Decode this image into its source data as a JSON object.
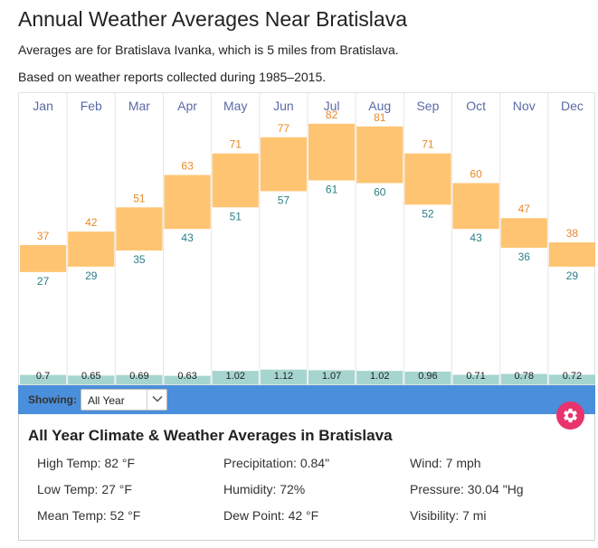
{
  "page": {
    "title": "Annual Weather Averages Near Bratislava",
    "subtitle1": "Averages are for Bratislava Ivanka, which is 5 miles from Bratislava.",
    "subtitle2": "Based on weather reports collected during 1985–2015."
  },
  "chart_data": {
    "type": "floating-bar",
    "categories": [
      "Jan",
      "Feb",
      "Mar",
      "Apr",
      "May",
      "Jun",
      "Jul",
      "Aug",
      "Sep",
      "Oct",
      "Nov",
      "Dec"
    ],
    "series": [
      {
        "name": "High Temp (°F)",
        "values": [
          37,
          42,
          51,
          63,
          71,
          77,
          82,
          81,
          71,
          60,
          47,
          38
        ]
      },
      {
        "name": "Low Temp (°F)",
        "values": [
          27,
          29,
          35,
          43,
          51,
          57,
          61,
          60,
          52,
          43,
          36,
          29
        ]
      },
      {
        "name": "Precipitation (in)",
        "values": [
          "0.7",
          "0.65",
          "0.69",
          "0.63",
          "1.02",
          "1.12",
          "1.07",
          "1.02",
          "0.96",
          "0.71",
          "0.78",
          "0.72"
        ]
      }
    ],
    "ylim": [
      12,
      90
    ]
  },
  "colors": {
    "bar": "#ffc472",
    "high": "#e8892a",
    "low": "#2a7f86",
    "month": "#5b6aa6",
    "precip": "#a6d5cf",
    "showing_bar": "#4a8fdb",
    "gear": "#e8336d"
  },
  "showing": {
    "label": "Showing:",
    "selected": "All Year"
  },
  "summary": {
    "title": "All Year Climate & Weather Averages in Bratislava",
    "high_temp": "High Temp: 82 °F",
    "low_temp": "Low Temp: 27 °F",
    "mean_temp": "Mean Temp: 52 °F",
    "precipitation": "Precipitation: 0.84\"",
    "humidity": "Humidity: 72%",
    "dew_point": "Dew Point: 42 °F",
    "wind": "Wind: 7 mph",
    "pressure": "Pressure: 30.04 \"Hg",
    "visibility": "Visibility: 7 mi"
  },
  "icons": {
    "gear": "gear-icon",
    "chevron": "chevron-down-icon"
  }
}
